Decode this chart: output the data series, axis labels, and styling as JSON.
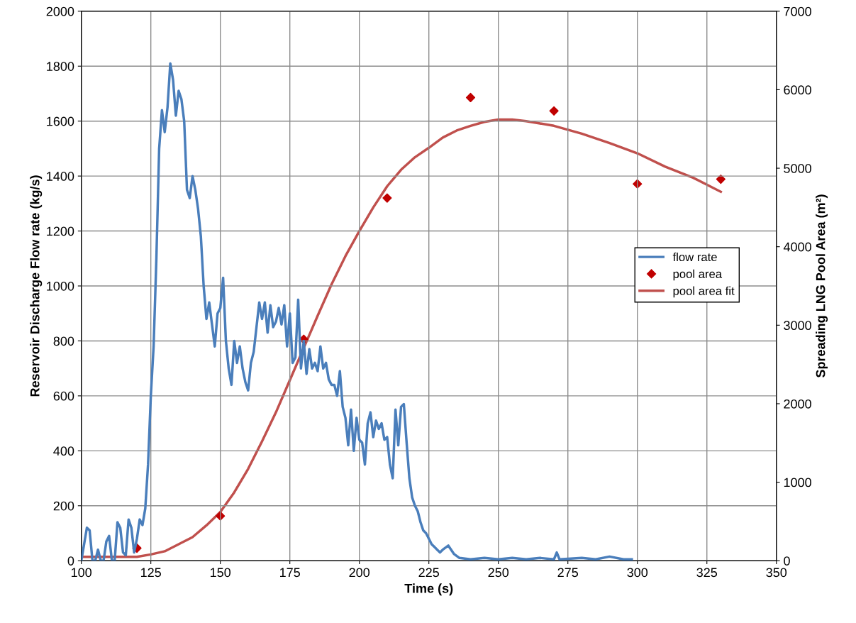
{
  "chart_data": {
    "type": "line",
    "xlabel": "Time (s)",
    "ylabel": "Reservoir Discharge Flow rate (kg/s)",
    "y2label": "Spreading LNG Pool Area (m²)",
    "xlim": [
      100,
      350
    ],
    "xticks": [
      100,
      125,
      150,
      175,
      200,
      225,
      250,
      275,
      300,
      325,
      350
    ],
    "ylim": [
      0,
      2000
    ],
    "yticks": [
      0,
      200,
      400,
      600,
      800,
      1000,
      1200,
      1400,
      1600,
      1800,
      2000
    ],
    "y2lim": [
      0,
      7000
    ],
    "y2ticks": [
      0,
      1000,
      2000,
      3000,
      4000,
      5000,
      6000,
      7000
    ],
    "grid": true,
    "legend": "right",
    "series": [
      {
        "name": "flow rate",
        "color": "#4a7ebb",
        "marker": "none",
        "x": [
          100,
          101,
          102,
          103,
          104,
          105,
          106,
          107,
          108,
          109,
          110,
          111,
          112,
          113,
          114,
          115,
          116,
          117,
          118,
          119,
          120,
          121,
          122,
          123,
          124,
          125,
          126,
          127,
          128,
          129,
          130,
          131,
          132,
          133,
          134,
          135,
          136,
          137,
          138,
          139,
          140,
          141,
          142,
          143,
          144,
          145,
          146,
          147,
          148,
          149,
          150,
          151,
          152,
          153,
          154,
          155,
          156,
          157,
          158,
          159,
          160,
          161,
          162,
          163,
          164,
          165,
          166,
          167,
          168,
          169,
          170,
          171,
          172,
          173,
          174,
          175,
          176,
          177,
          178,
          179,
          180,
          181,
          182,
          183,
          184,
          185,
          186,
          187,
          188,
          189,
          190,
          191,
          192,
          193,
          194,
          195,
          196,
          197,
          198,
          199,
          200,
          201,
          202,
          203,
          204,
          205,
          206,
          207,
          208,
          209,
          210,
          211,
          212,
          213,
          214,
          215,
          216,
          217,
          218,
          219,
          220,
          221,
          222,
          223,
          224,
          225,
          226,
          227,
          228,
          229,
          230,
          232,
          234,
          236,
          240,
          245,
          250,
          255,
          260,
          265,
          270,
          271,
          272,
          280,
          285,
          290,
          295,
          298
        ],
        "values": [
          0,
          60,
          120,
          110,
          0,
          0,
          40,
          0,
          0,
          70,
          90,
          0,
          0,
          140,
          120,
          30,
          20,
          150,
          120,
          30,
          80,
          150,
          130,
          190,
          350,
          600,
          780,
          1100,
          1500,
          1640,
          1560,
          1650,
          1810,
          1750,
          1620,
          1710,
          1680,
          1600,
          1350,
          1320,
          1400,
          1350,
          1280,
          1180,
          1000,
          880,
          940,
          860,
          780,
          900,
          920,
          1030,
          800,
          700,
          640,
          800,
          720,
          780,
          700,
          650,
          620,
          720,
          760,
          850,
          940,
          880,
          940,
          830,
          930,
          850,
          870,
          920,
          860,
          930,
          780,
          900,
          720,
          740,
          950,
          700,
          800,
          680,
          770,
          700,
          720,
          690,
          780,
          700,
          720,
          660,
          640,
          640,
          600,
          690,
          560,
          520,
          420,
          550,
          400,
          520,
          440,
          430,
          350,
          500,
          540,
          450,
          510,
          480,
          500,
          440,
          450,
          350,
          300,
          550,
          420,
          560,
          570,
          430,
          300,
          230,
          200,
          180,
          140,
          110,
          100,
          80,
          60,
          50,
          40,
          30,
          40,
          55,
          25,
          10,
          5,
          10,
          5,
          10,
          5,
          10,
          5,
          30,
          5,
          10,
          5,
          15,
          5,
          5
        ]
      },
      {
        "name": "pool area",
        "type": "scatter",
        "axis": "y2",
        "color": "#c00000",
        "marker": "diamond",
        "x": [
          120,
          150,
          180,
          210,
          240,
          270,
          300,
          330
        ],
        "values": [
          160,
          570,
          2820,
          4620,
          5900,
          5730,
          4800,
          4860
        ]
      },
      {
        "name": "pool area fit",
        "axis": "y2",
        "color": "#c0504d",
        "marker": "none",
        "x": [
          100,
          110,
          120,
          125,
          130,
          135,
          140,
          145,
          150,
          155,
          160,
          165,
          170,
          175,
          180,
          185,
          190,
          195,
          200,
          205,
          210,
          215,
          220,
          225,
          230,
          235,
          240,
          245,
          250,
          255,
          260,
          265,
          270,
          280,
          290,
          300,
          310,
          320,
          330
        ],
        "values": [
          50,
          50,
          50,
          80,
          120,
          210,
          300,
          450,
          620,
          870,
          1170,
          1520,
          1890,
          2300,
          2710,
          3120,
          3520,
          3880,
          4200,
          4500,
          4770,
          4980,
          5140,
          5260,
          5390,
          5480,
          5540,
          5590,
          5620,
          5620,
          5600,
          5570,
          5540,
          5440,
          5320,
          5190,
          5020,
          4880,
          4700
        ]
      }
    ]
  }
}
